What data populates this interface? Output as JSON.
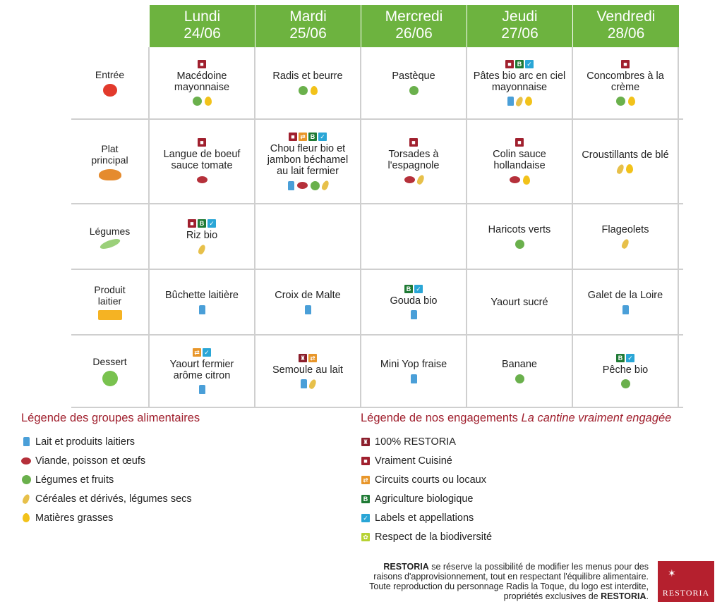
{
  "days": [
    {
      "name": "Lundi",
      "date": "24/06"
    },
    {
      "name": "Mardi",
      "date": "25/06"
    },
    {
      "name": "Mercredi",
      "date": "26/06"
    },
    {
      "name": "Jeudi",
      "date": "27/06"
    },
    {
      "name": "Vendredi",
      "date": "28/06"
    }
  ],
  "rows": [
    {
      "category": [
        "Entrée"
      ],
      "cat_icon": "tomato-icon",
      "cells": [
        {
          "lines": [
            "Macédoine",
            "mayonnaise"
          ],
          "badges": [
            "cuisine"
          ],
          "icons": [
            "leg",
            "mg"
          ]
        },
        {
          "lines": [
            "Radis et beurre"
          ],
          "badges": [],
          "icons": [
            "leg",
            "mg"
          ]
        },
        {
          "lines": [
            "Pastèque"
          ],
          "badges": [],
          "icons": [
            "leg"
          ]
        },
        {
          "lines": [
            "Pâtes bio arc en ciel",
            "mayonnaise"
          ],
          "badges": [
            "cuisine",
            "bio",
            "label"
          ],
          "icons": [
            "lait",
            "cer",
            "mg"
          ]
        },
        {
          "lines": [
            "Concombres à la",
            "crème"
          ],
          "badges": [
            "cuisine"
          ],
          "icons": [
            "leg",
            "mg"
          ]
        }
      ]
    },
    {
      "category": [
        "Plat",
        "principal"
      ],
      "cat_icon": "roast-chicken-icon",
      "cells": [
        {
          "lines": [
            "Langue de boeuf",
            "sauce tomate"
          ],
          "badges": [
            "cuisine"
          ],
          "icons": [
            "viande"
          ]
        },
        {
          "lines": [
            "Chou fleur bio et",
            "jambon béchamel",
            "au lait fermier"
          ],
          "badges": [
            "cuisine",
            "circuit",
            "bio",
            "label"
          ],
          "icons": [
            "lait",
            "viande",
            "leg",
            "cer"
          ]
        },
        {
          "lines": [
            "Torsades à",
            "l'espagnole"
          ],
          "badges": [
            "cuisine"
          ],
          "icons": [
            "viande",
            "cer"
          ]
        },
        {
          "lines": [
            "Colin sauce",
            "hollandaise"
          ],
          "badges": [
            "cuisine"
          ],
          "icons": [
            "viande",
            "mg"
          ]
        },
        {
          "lines": [
            "Croustillants de blé"
          ],
          "badges": [],
          "icons": [
            "cer",
            "mg"
          ]
        }
      ]
    },
    {
      "category": [
        "Légumes"
      ],
      "cat_icon": "green-beans-icon",
      "cells": [
        {
          "lines": [
            "Riz bio"
          ],
          "badges": [
            "cuisine",
            "bio",
            "label"
          ],
          "icons": [
            "cer"
          ]
        },
        {
          "lines": [],
          "badges": [],
          "icons": []
        },
        {
          "lines": [],
          "badges": [],
          "icons": []
        },
        {
          "lines": [
            "Haricots verts"
          ],
          "badges": [],
          "icons": [
            "leg"
          ]
        },
        {
          "lines": [
            "Flageolets"
          ],
          "badges": [],
          "icons": [
            "cer"
          ]
        }
      ]
    },
    {
      "category": [
        "Produit",
        "laitier"
      ],
      "cat_icon": "cheese-icon",
      "cells": [
        {
          "lines": [
            "Bûchette laitière"
          ],
          "badges": [],
          "icons": [
            "lait"
          ]
        },
        {
          "lines": [
            "Croix de Malte"
          ],
          "badges": [],
          "icons": [
            "lait"
          ]
        },
        {
          "lines": [
            "Gouda bio"
          ],
          "badges": [
            "bio",
            "label"
          ],
          "icons": [
            "lait"
          ]
        },
        {
          "lines": [
            "Yaourt sucré"
          ],
          "badges": [],
          "icons": []
        },
        {
          "lines": [
            "Galet de la Loire"
          ],
          "badges": [],
          "icons": [
            "lait"
          ]
        }
      ]
    },
    {
      "category": [
        "Dessert"
      ],
      "cat_icon": "apple-icon",
      "cells": [
        {
          "lines": [
            "Yaourt fermier",
            "arôme citron"
          ],
          "badges": [
            "circuit",
            "label"
          ],
          "icons": [
            "lait"
          ]
        },
        {
          "lines": [
            "Semoule au lait"
          ],
          "badges": [
            "restoria",
            "circuit"
          ],
          "icons": [
            "lait",
            "cer"
          ]
        },
        {
          "lines": [
            "Mini Yop fraise"
          ],
          "badges": [],
          "icons": [
            "lait"
          ]
        },
        {
          "lines": [
            "Banane"
          ],
          "badges": [],
          "icons": [
            "leg"
          ]
        },
        {
          "lines": [
            "Pêche bio"
          ],
          "badges": [
            "bio",
            "label"
          ],
          "icons": [
            "leg"
          ]
        }
      ]
    }
  ],
  "legend_groups": {
    "title": "Légende des groupes alimentaires",
    "items": [
      {
        "icon": "lait",
        "label": "Lait et produits laitiers"
      },
      {
        "icon": "viande",
        "label": "Viande, poisson et œufs"
      },
      {
        "icon": "leg",
        "label": "Légumes et fruits"
      },
      {
        "icon": "cer",
        "label": "Céréales et dérivés, légumes secs"
      },
      {
        "icon": "mg",
        "label": "Matières grasses"
      }
    ]
  },
  "legend_engagements": {
    "title": "Légende de nos engagements ",
    "title_em": "La cantine vraiment engagée",
    "items": [
      {
        "badge": "restoria",
        "label": "100% RESTORIA"
      },
      {
        "badge": "cuisine",
        "label": "Vraiment Cuisiné"
      },
      {
        "badge": "circuit",
        "label": "Circuits courts ou locaux"
      },
      {
        "badge": "bio",
        "label": "Agriculture biologique"
      },
      {
        "badge": "label",
        "label": "Labels et appellations"
      },
      {
        "badge": "biodiv",
        "label": "Respect de la biodiversité"
      }
    ]
  },
  "footer": {
    "brand": "RESTORIA",
    "line1": " se réserve la possibilité de modifier les menus pour des",
    "line2": "raisons d'approvisionnement, tout en respectant l'équilibre alimentaire.",
    "line3": "Toute reproduction du personnage Radis la Toque, du logo est interdite,",
    "line4": "propriétés exclusives de ",
    "line4_end": "."
  },
  "logo_text": "RESTORIA",
  "colors": {
    "header_green": "#6db33f",
    "legend_title": "#a0202e",
    "logo_bg": "#b5202e"
  }
}
